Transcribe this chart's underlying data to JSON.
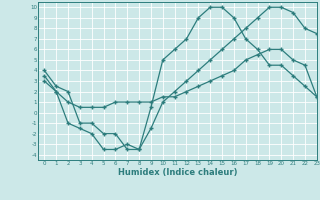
{
  "xlabel": "Humidex (Indice chaleur)",
  "background_color": "#cce8e8",
  "grid_color": "#ffffff",
  "line_color": "#2d7d7d",
  "xlim": [
    -0.5,
    23
  ],
  "ylim": [
    -4.5,
    10.5
  ],
  "xticks": [
    0,
    1,
    2,
    3,
    4,
    5,
    6,
    7,
    8,
    9,
    10,
    11,
    12,
    13,
    14,
    15,
    16,
    17,
    18,
    19,
    20,
    21,
    22,
    23
  ],
  "yticks": [
    -4,
    -3,
    -2,
    -1,
    0,
    1,
    2,
    3,
    4,
    5,
    6,
    7,
    8,
    9,
    10
  ],
  "curve1_x": [
    0,
    1,
    2,
    3,
    4,
    5,
    6,
    7,
    8,
    9,
    10,
    11,
    12,
    13,
    14,
    15,
    16,
    17,
    18,
    19,
    20,
    21,
    22,
    23
  ],
  "curve1_y": [
    4,
    2.5,
    2,
    -1,
    -1,
    -2,
    -2,
    -3.5,
    -3.5,
    0.5,
    5,
    6,
    7,
    9,
    10,
    10,
    9,
    7,
    6,
    4.5,
    4.5,
    3.5,
    2.5,
    1.5
  ],
  "curve2_x": [
    0,
    1,
    2,
    3,
    4,
    5,
    6,
    7,
    8,
    9,
    10,
    11,
    12,
    13,
    14,
    15,
    16,
    17,
    18,
    19,
    20,
    21,
    22,
    23
  ],
  "curve2_y": [
    3.5,
    2,
    1,
    0.5,
    0.5,
    0.5,
    1,
    1,
    1,
    1,
    1.5,
    1.5,
    2,
    2.5,
    3,
    3.5,
    4,
    5,
    5.5,
    6,
    6,
    5,
    4.5,
    1.5
  ],
  "curve3_x": [
    0,
    1,
    2,
    3,
    4,
    5,
    6,
    7,
    8,
    9,
    10,
    11,
    12,
    13,
    14,
    15,
    16,
    17,
    18,
    19,
    20,
    21,
    22,
    23
  ],
  "curve3_y": [
    3,
    2,
    -1,
    -1.5,
    -2,
    -3.5,
    -3.5,
    -3,
    -3.5,
    -1.5,
    1,
    2,
    3,
    4,
    5,
    6,
    7,
    8,
    9,
    10,
    10,
    9.5,
    8,
    7.5
  ],
  "xlabel_fontsize": 6,
  "tick_fontsize": 4,
  "linewidth": 0.9,
  "markersize": 2.5
}
